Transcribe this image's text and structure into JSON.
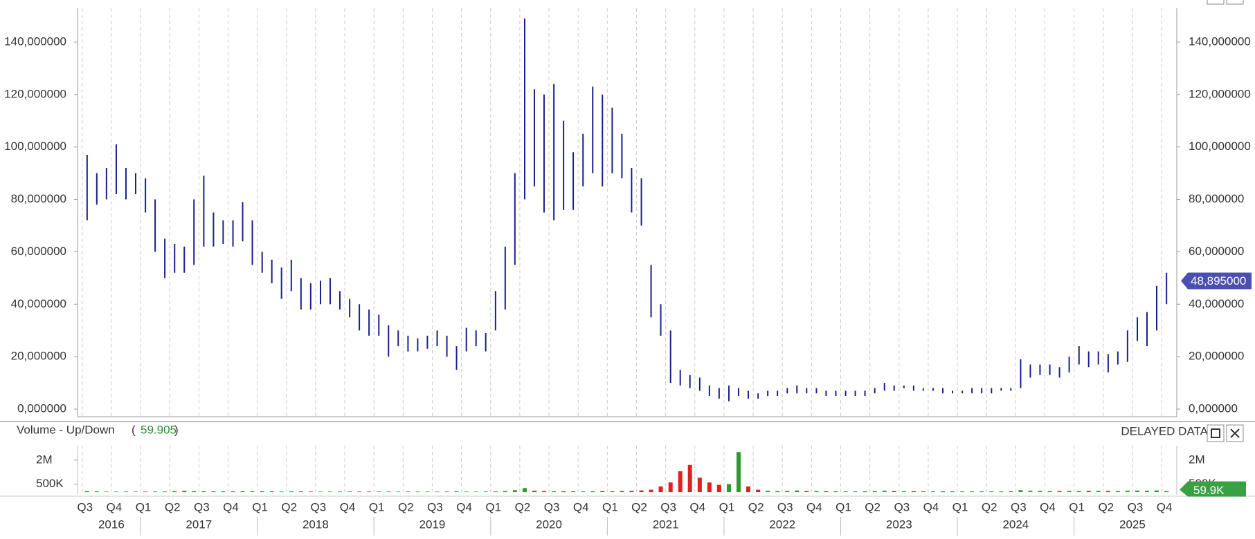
{
  "chart_data": [
    {
      "type": "ohlc",
      "xlim": [
        2016.46,
        2025.88
      ],
      "ylim": [
        -2.9,
        152.9
      ],
      "grid": true,
      "yticks": [
        {
          "value": 0,
          "label": "0,000000"
        },
        {
          "value": 20,
          "label": "20,000000"
        },
        {
          "value": 40,
          "label": "40,000000"
        },
        {
          "value": 60,
          "label": "60,000000"
        },
        {
          "value": 80,
          "label": "80,000000"
        },
        {
          "value": 100,
          "label": "100,000000"
        },
        {
          "value": 120,
          "label": "120,000000"
        },
        {
          "value": 140,
          "label": "140,000000"
        }
      ],
      "xticks": [
        {
          "value": 2016.5,
          "label": "Q3"
        },
        {
          "value": 2016.75,
          "label": "Q4"
        },
        {
          "value": 2017,
          "label": "Q1"
        },
        {
          "value": 2017.25,
          "label": "Q2"
        },
        {
          "value": 2017.5,
          "label": "Q3"
        },
        {
          "value": 2017.75,
          "label": "Q4"
        },
        {
          "value": 2018,
          "label": "Q1"
        },
        {
          "value": 2018.25,
          "label": "Q2"
        },
        {
          "value": 2018.5,
          "label": "Q3"
        },
        {
          "value": 2018.75,
          "label": "Q4"
        },
        {
          "value": 2019,
          "label": "Q1"
        },
        {
          "value": 2019.25,
          "label": "Q2"
        },
        {
          "value": 2019.5,
          "label": "Q3"
        },
        {
          "value": 2019.75,
          "label": "Q4"
        },
        {
          "value": 2020,
          "label": "Q1"
        },
        {
          "value": 2020.25,
          "label": "Q2"
        },
        {
          "value": 2020.5,
          "label": "Q3"
        },
        {
          "value": 2020.75,
          "label": "Q4"
        },
        {
          "value": 2021,
          "label": "Q1"
        },
        {
          "value": 2021.25,
          "label": "Q2"
        },
        {
          "value": 2021.5,
          "label": "Q3"
        },
        {
          "value": 2021.75,
          "label": "Q4"
        },
        {
          "value": 2022,
          "label": "Q1"
        },
        {
          "value": 2022.25,
          "label": "Q2"
        },
        {
          "value": 2022.5,
          "label": "Q3"
        },
        {
          "value": 2022.75,
          "label": "Q4"
        },
        {
          "value": 2023,
          "label": "Q1"
        },
        {
          "value": 2023.25,
          "label": "Q2"
        },
        {
          "value": 2023.5,
          "label": "Q3"
        },
        {
          "value": 2023.75,
          "label": "Q4"
        },
        {
          "value": 2024,
          "label": "Q1"
        },
        {
          "value": 2024.25,
          "label": "Q2"
        },
        {
          "value": 2024.5,
          "label": "Q3"
        },
        {
          "value": 2024.75,
          "label": "Q4"
        },
        {
          "value": 2025,
          "label": "Q1"
        },
        {
          "value": 2025.25,
          "label": "Q2"
        },
        {
          "value": 2025.5,
          "label": "Q3"
        },
        {
          "value": 2025.75,
          "label": "Q4"
        }
      ],
      "year_ticks": [
        {
          "value": 2016.75,
          "label": "2016"
        },
        {
          "value": 2017.5,
          "label": "2017"
        },
        {
          "value": 2018.5,
          "label": "2018"
        },
        {
          "value": 2019.5,
          "label": "2019"
        },
        {
          "value": 2020.5,
          "label": "2020"
        },
        {
          "value": 2021.5,
          "label": "2021"
        },
        {
          "value": 2022.5,
          "label": "2022"
        },
        {
          "value": 2023.5,
          "label": "2023"
        },
        {
          "value": 2024.5,
          "label": "2024"
        },
        {
          "value": 2025.5,
          "label": "2025"
        }
      ],
      "last_price": {
        "value": 48.895,
        "label": "48,895000"
      },
      "series": [
        {
          "color": "#1a1f8c",
          "x": [
            2016.542,
            2016.625,
            2016.708,
            2016.792,
            2016.875,
            2016.958,
            2017.042,
            2017.125,
            2017.208,
            2017.292,
            2017.375,
            2017.458,
            2017.542,
            2017.625,
            2017.708,
            2017.792,
            2017.875,
            2017.958,
            2018.042,
            2018.125,
            2018.208,
            2018.292,
            2018.375,
            2018.458,
            2018.542,
            2018.625,
            2018.708,
            2018.792,
            2018.875,
            2018.958,
            2019.042,
            2019.125,
            2019.208,
            2019.292,
            2019.375,
            2019.458,
            2019.542,
            2019.625,
            2019.708,
            2019.792,
            2019.875,
            2019.958,
            2020.042,
            2020.125,
            2020.208,
            2020.292,
            2020.375,
            2020.458,
            2020.542,
            2020.625,
            2020.708,
            2020.792,
            2020.875,
            2020.958,
            2021.042,
            2021.125,
            2021.208,
            2021.292,
            2021.375,
            2021.458,
            2021.542,
            2021.625,
            2021.708,
            2021.792,
            2021.875,
            2021.958,
            2022.042,
            2022.125,
            2022.208,
            2022.292,
            2022.375,
            2022.458,
            2022.542,
            2022.625,
            2022.708,
            2022.792,
            2022.875,
            2022.958,
            2023.042,
            2023.125,
            2023.208,
            2023.292,
            2023.375,
            2023.458,
            2023.542,
            2023.625,
            2023.708,
            2023.792,
            2023.875,
            2023.958,
            2024.042,
            2024.125,
            2024.208,
            2024.292,
            2024.375,
            2024.458,
            2024.542,
            2024.625,
            2024.708,
            2024.792,
            2024.875,
            2024.958,
            2025.042,
            2025.125,
            2025.208,
            2025.292,
            2025.375,
            2025.458,
            2025.542,
            2025.625,
            2025.708,
            2025.792
          ],
          "high": [
            97,
            90,
            92,
            101,
            92,
            90,
            88,
            80,
            65,
            63,
            62,
            80,
            89,
            75,
            72,
            72,
            79,
            72,
            60,
            57,
            54,
            57,
            50,
            48,
            49,
            50,
            45,
            42,
            40,
            38,
            36,
            32,
            30,
            28,
            27,
            28,
            30,
            28,
            24,
            31,
            30,
            29,
            45,
            62,
            90,
            149,
            122,
            120,
            124,
            110,
            98,
            105,
            123,
            120,
            115,
            105,
            92,
            88,
            55,
            40,
            30,
            15,
            13,
            12,
            9,
            8,
            9,
            8,
            7,
            6,
            7,
            7,
            8,
            9,
            8,
            8,
            7,
            7,
            7,
            7,
            7,
            8,
            10,
            9,
            9,
            9,
            8,
            8,
            8,
            7,
            7,
            8,
            8,
            8,
            8,
            8,
            19,
            17,
            17,
            17,
            16,
            20,
            24,
            22,
            22,
            21,
            22,
            30,
            35,
            37,
            47,
            52
          ],
          "low": [
            72,
            78,
            80,
            82,
            80,
            82,
            75,
            60,
            50,
            52,
            52,
            55,
            62,
            62,
            63,
            62,
            64,
            55,
            52,
            48,
            42,
            45,
            38,
            38,
            40,
            40,
            38,
            35,
            30,
            28,
            28,
            20,
            24,
            22,
            22,
            23,
            24,
            20,
            15,
            22,
            24,
            22,
            30,
            38,
            55,
            80,
            85,
            75,
            72,
            76,
            76,
            85,
            90,
            85,
            90,
            88,
            75,
            70,
            35,
            28,
            10,
            9,
            8,
            7,
            5,
            4,
            3,
            5,
            4,
            4,
            5,
            5,
            6,
            6,
            6,
            6,
            5,
            5,
            5,
            5,
            5,
            6,
            7,
            7,
            8,
            7,
            7,
            7,
            6,
            6,
            6,
            6,
            6,
            6,
            7,
            7,
            8,
            12,
            13,
            13,
            12,
            14,
            17,
            16,
            17,
            14,
            17,
            18,
            26,
            24,
            30,
            40
          ]
        }
      ]
    },
    {
      "type": "bar",
      "title": "Volume - Up/Down",
      "indicator": 59.905,
      "status": "DELAYED DATA",
      "ylim": [
        -170000,
        2900000
      ],
      "yticks": [
        {
          "value": 500000,
          "label": "500K"
        },
        {
          "value": 2000000,
          "label": "2M"
        }
      ],
      "up_color": "#2e9a2e",
      "down_color": "#e02020",
      "last_value": {
        "value": 59900,
        "label": "59.9K"
      },
      "values": [
        60000,
        40000,
        30000,
        30000,
        30000,
        30000,
        30000,
        30000,
        30000,
        60000,
        70000,
        60000,
        50000,
        40000,
        40000,
        40000,
        50000,
        40000,
        40000,
        40000,
        30000,
        40000,
        40000,
        30000,
        30000,
        30000,
        30000,
        30000,
        30000,
        30000,
        30000,
        30000,
        30000,
        30000,
        30000,
        30000,
        30000,
        30000,
        40000,
        30000,
        30000,
        30000,
        40000,
        60000,
        120000,
        250000,
        80000,
        60000,
        50000,
        50000,
        40000,
        40000,
        50000,
        60000,
        50000,
        60000,
        70000,
        100000,
        150000,
        350000,
        600000,
        1300000,
        1700000,
        900000,
        600000,
        450000,
        500000,
        2500000,
        350000,
        150000,
        80000,
        60000,
        70000,
        100000,
        60000,
        60000,
        50000,
        50000,
        40000,
        40000,
        50000,
        60000,
        80000,
        60000,
        50000,
        50000,
        40000,
        40000,
        40000,
        40000,
        40000,
        40000,
        40000,
        40000,
        40000,
        50000,
        120000,
        80000,
        70000,
        60000,
        60000,
        70000,
        60000,
        70000,
        70000,
        70000,
        60000,
        80000,
        90000,
        80000,
        100000,
        59900
      ]
    }
  ]
}
